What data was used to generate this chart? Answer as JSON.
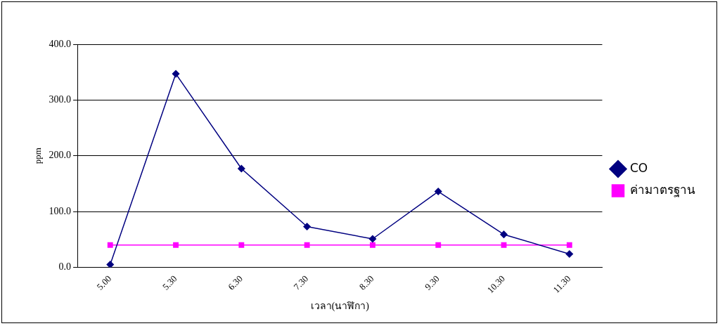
{
  "chart_data": {
    "type": "line",
    "xlabel": "เวลา(นาฬิกา)",
    "ylabel": "ppm",
    "categories": [
      "5.00",
      "5.30",
      "6.30",
      "7.30",
      "8.30",
      "9.30",
      "10.30",
      "11.30"
    ],
    "series": [
      {
        "name": "CO",
        "color": "#000080",
        "marker": "diamond",
        "values": [
          5,
          347,
          177,
          73,
          51,
          136,
          59,
          24
        ]
      },
      {
        "name": "ค่ามาตรฐาน",
        "color": "#ff00ff",
        "marker": "square",
        "values": [
          40,
          40,
          40,
          40,
          40,
          40,
          40,
          40
        ]
      }
    ],
    "ylim": [
      0,
      400
    ],
    "yticks": [
      {
        "value": 0,
        "label": "0.0"
      },
      {
        "value": 100,
        "label": "100.0"
      },
      {
        "value": 200,
        "label": "200.0"
      },
      {
        "value": 300,
        "label": "300.0"
      },
      {
        "value": 400,
        "label": "400.0"
      }
    ],
    "grid": "y",
    "legend": "right",
    "line_style": "solid"
  }
}
